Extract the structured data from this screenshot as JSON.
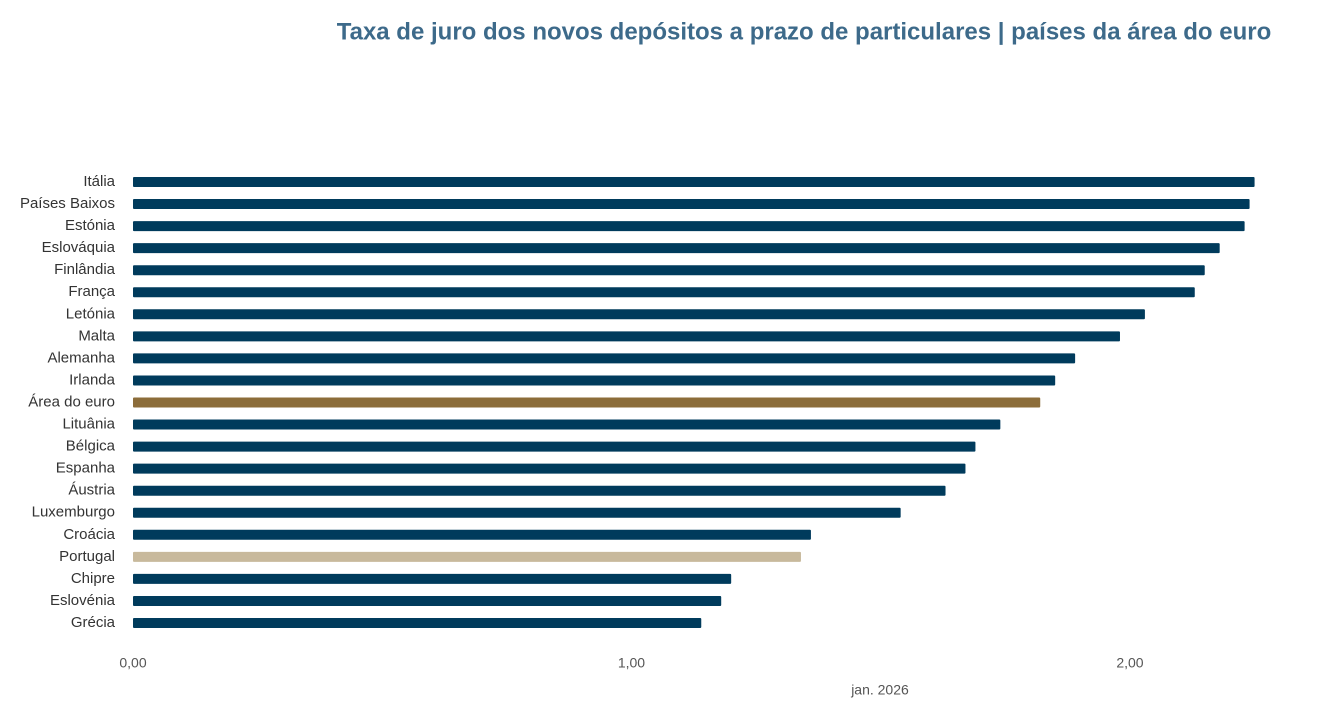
{
  "chart_data": {
    "type": "hbar",
    "title": "Taxa de juro dos novos depósitos a prazo de particulares | países da área do euro",
    "x_label": "jan. 2026",
    "categories": [
      "Itália",
      "Países Baixos",
      "Estónia",
      "Eslováquia",
      "Finlândia",
      "França",
      "Letónia",
      "Malta",
      "Alemanha",
      "Irlanda",
      "Área do euro",
      "Lituânia",
      "Bélgica",
      "Espanha",
      "Áustria",
      "Luxemburgo",
      "Croácia",
      "Portugal",
      "Chipre",
      "Eslovénia",
      "Grécia"
    ],
    "values": [
      2.25,
      2.24,
      2.23,
      2.18,
      2.15,
      2.13,
      2.03,
      1.98,
      1.89,
      1.85,
      1.82,
      1.74,
      1.69,
      1.67,
      1.63,
      1.54,
      1.36,
      1.34,
      1.2,
      1.18,
      1.14
    ],
    "colors": [
      "#003b5c",
      "#003b5c",
      "#003b5c",
      "#003b5c",
      "#003b5c",
      "#003b5c",
      "#003b5c",
      "#003b5c",
      "#003b5c",
      "#003b5c",
      "#8c6d3a",
      "#003b5c",
      "#003b5c",
      "#003b5c",
      "#003b5c",
      "#003b5c",
      "#003b5c",
      "#c8b99c",
      "#003b5c",
      "#003b5c",
      "#003b5c"
    ],
    "xlim": [
      0,
      2.3
    ],
    "xticks": [
      {
        "value": 0,
        "label": "0,00"
      },
      {
        "value": 1,
        "label": "1,00"
      },
      {
        "value": 2,
        "label": "2,00"
      }
    ]
  }
}
